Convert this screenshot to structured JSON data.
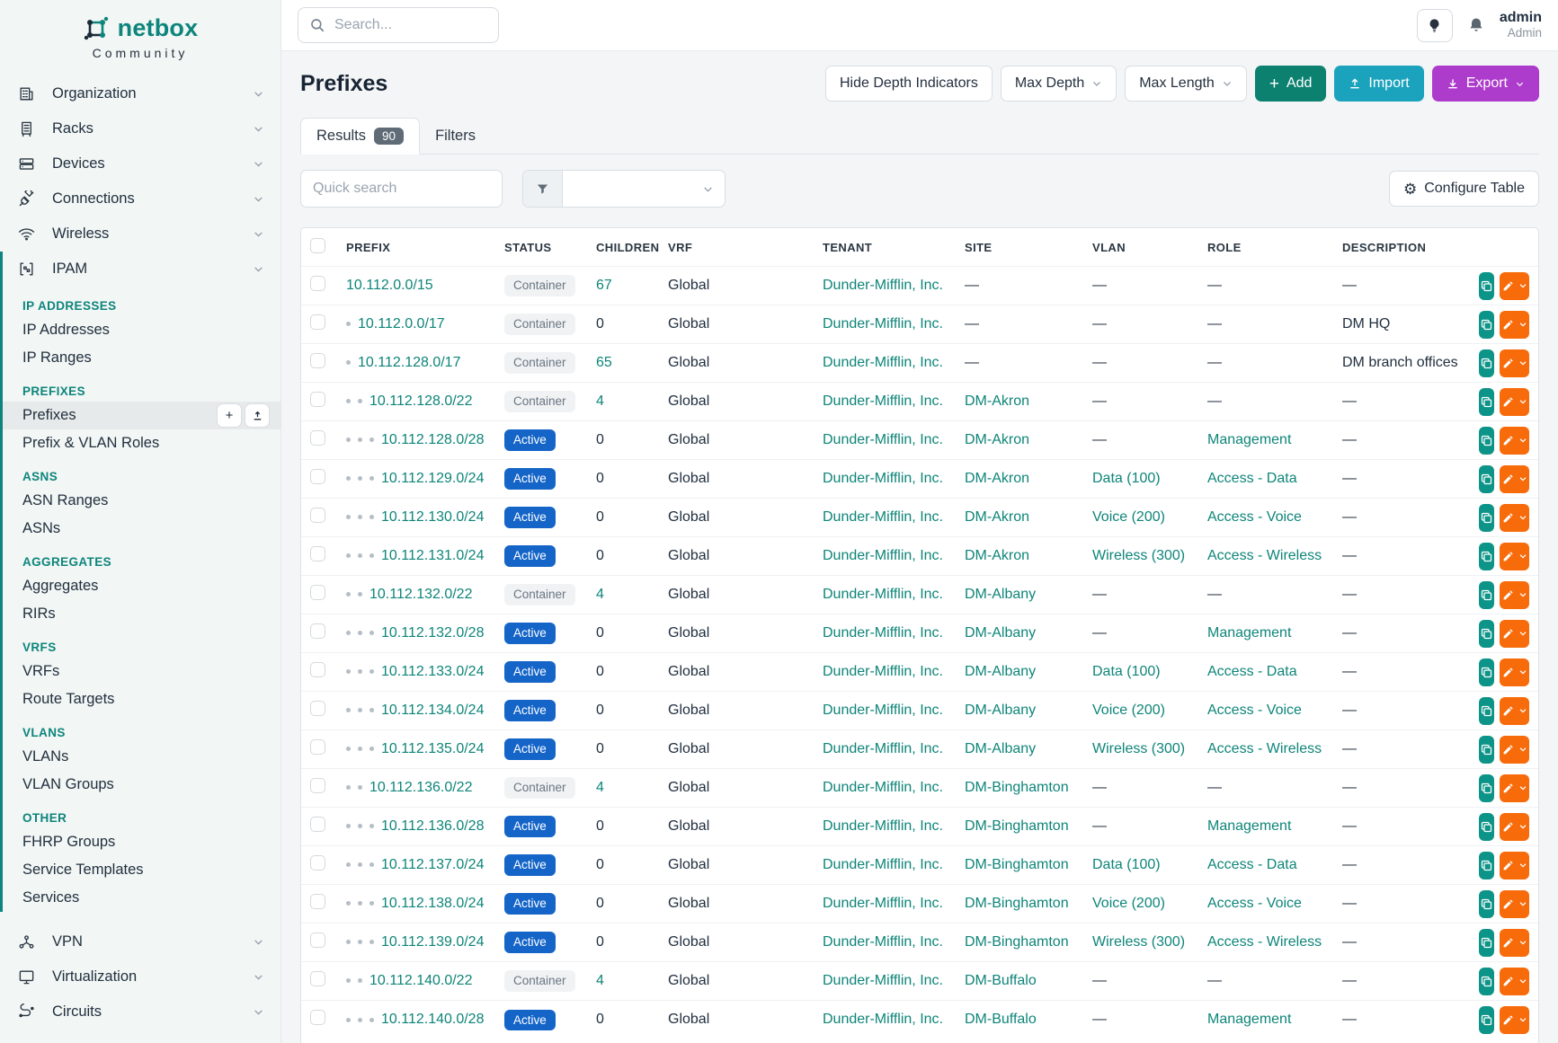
{
  "brand": {
    "name": "netbox",
    "subtitle": "Community"
  },
  "topbar": {
    "search_placeholder": "Search...",
    "user_name": "admin",
    "user_role": "Admin"
  },
  "sidebar": {
    "top_items": [
      {
        "label": "Organization",
        "icon": "building-icon"
      },
      {
        "label": "Racks",
        "icon": "rack-icon"
      },
      {
        "label": "Devices",
        "icon": "devices-icon"
      },
      {
        "label": "Connections",
        "icon": "plug-icon"
      },
      {
        "label": "Wireless",
        "icon": "wifi-icon"
      }
    ],
    "ipam": {
      "label": "IPAM",
      "icon": "ipam-icon",
      "sections": [
        {
          "title": "IP ADDRESSES",
          "items": [
            {
              "label": "IP Addresses"
            },
            {
              "label": "IP Ranges"
            }
          ]
        },
        {
          "title": "PREFIXES",
          "items": [
            {
              "label": "Prefixes",
              "active": true
            },
            {
              "label": "Prefix & VLAN Roles"
            }
          ]
        },
        {
          "title": "ASNS",
          "items": [
            {
              "label": "ASN Ranges"
            },
            {
              "label": "ASNs"
            }
          ]
        },
        {
          "title": "AGGREGATES",
          "items": [
            {
              "label": "Aggregates"
            },
            {
              "label": "RIRs"
            }
          ]
        },
        {
          "title": "VRFS",
          "items": [
            {
              "label": "VRFs"
            },
            {
              "label": "Route Targets"
            }
          ]
        },
        {
          "title": "VLANS",
          "items": [
            {
              "label": "VLANs"
            },
            {
              "label": "VLAN Groups"
            }
          ]
        },
        {
          "title": "OTHER",
          "items": [
            {
              "label": "FHRP Groups"
            },
            {
              "label": "Service Templates"
            },
            {
              "label": "Services"
            }
          ]
        }
      ]
    },
    "bottom_items": [
      {
        "label": "VPN",
        "icon": "vpn-icon"
      },
      {
        "label": "Virtualization",
        "icon": "monitor-icon"
      },
      {
        "label": "Circuits",
        "icon": "circuits-icon"
      }
    ]
  },
  "page": {
    "title": "Prefixes",
    "hide_depth_label": "Hide Depth Indicators",
    "max_depth_label": "Max Depth",
    "max_length_label": "Max Length",
    "add_label": "Add",
    "import_label": "Import",
    "export_label": "Export"
  },
  "tabs": {
    "results_label": "Results",
    "results_count": "90",
    "filters_label": "Filters"
  },
  "toolbar": {
    "quick_search_placeholder": "Quick search",
    "configure_label": "Configure Table"
  },
  "table": {
    "columns": [
      "PREFIX",
      "STATUS",
      "CHILDREN",
      "VRF",
      "TENANT",
      "SITE",
      "VLAN",
      "ROLE",
      "DESCRIPTION"
    ],
    "rows": [
      {
        "depth": 0,
        "prefix": "10.112.0.0/15",
        "status": "Container",
        "children": "67",
        "vrf": "Global",
        "tenant": "Dunder-Mifflin, Inc.",
        "site": "—",
        "vlan": "—",
        "role": "—",
        "description": "—"
      },
      {
        "depth": 1,
        "prefix": "10.112.0.0/17",
        "status": "Container",
        "children": "0",
        "vrf": "Global",
        "tenant": "Dunder-Mifflin, Inc.",
        "site": "—",
        "vlan": "—",
        "role": "—",
        "description": "DM HQ"
      },
      {
        "depth": 1,
        "prefix": "10.112.128.0/17",
        "status": "Container",
        "children": "65",
        "vrf": "Global",
        "tenant": "Dunder-Mifflin, Inc.",
        "site": "—",
        "vlan": "—",
        "role": "—",
        "description": "DM branch offices"
      },
      {
        "depth": 2,
        "prefix": "10.112.128.0/22",
        "status": "Container",
        "children": "4",
        "vrf": "Global",
        "tenant": "Dunder-Mifflin, Inc.",
        "site": "DM-Akron",
        "vlan": "—",
        "role": "—",
        "description": "—"
      },
      {
        "depth": 3,
        "prefix": "10.112.128.0/28",
        "status": "Active",
        "children": "0",
        "vrf": "Global",
        "tenant": "Dunder-Mifflin, Inc.",
        "site": "DM-Akron",
        "vlan": "—",
        "role": "Management",
        "description": "—"
      },
      {
        "depth": 3,
        "prefix": "10.112.129.0/24",
        "status": "Active",
        "children": "0",
        "vrf": "Global",
        "tenant": "Dunder-Mifflin, Inc.",
        "site": "DM-Akron",
        "vlan": "Data (100)",
        "role": "Access - Data",
        "description": "—"
      },
      {
        "depth": 3,
        "prefix": "10.112.130.0/24",
        "status": "Active",
        "children": "0",
        "vrf": "Global",
        "tenant": "Dunder-Mifflin, Inc.",
        "site": "DM-Akron",
        "vlan": "Voice (200)",
        "role": "Access - Voice",
        "description": "—"
      },
      {
        "depth": 3,
        "prefix": "10.112.131.0/24",
        "status": "Active",
        "children": "0",
        "vrf": "Global",
        "tenant": "Dunder-Mifflin, Inc.",
        "site": "DM-Akron",
        "vlan": "Wireless (300)",
        "role": "Access - Wireless",
        "description": "—"
      },
      {
        "depth": 2,
        "prefix": "10.112.132.0/22",
        "status": "Container",
        "children": "4",
        "vrf": "Global",
        "tenant": "Dunder-Mifflin, Inc.",
        "site": "DM-Albany",
        "vlan": "—",
        "role": "—",
        "description": "—"
      },
      {
        "depth": 3,
        "prefix": "10.112.132.0/28",
        "status": "Active",
        "children": "0",
        "vrf": "Global",
        "tenant": "Dunder-Mifflin, Inc.",
        "site": "DM-Albany",
        "vlan": "—",
        "role": "Management",
        "description": "—"
      },
      {
        "depth": 3,
        "prefix": "10.112.133.0/24",
        "status": "Active",
        "children": "0",
        "vrf": "Global",
        "tenant": "Dunder-Mifflin, Inc.",
        "site": "DM-Albany",
        "vlan": "Data (100)",
        "role": "Access - Data",
        "description": "—"
      },
      {
        "depth": 3,
        "prefix": "10.112.134.0/24",
        "status": "Active",
        "children": "0",
        "vrf": "Global",
        "tenant": "Dunder-Mifflin, Inc.",
        "site": "DM-Albany",
        "vlan": "Voice (200)",
        "role": "Access - Voice",
        "description": "—"
      },
      {
        "depth": 3,
        "prefix": "10.112.135.0/24",
        "status": "Active",
        "children": "0",
        "vrf": "Global",
        "tenant": "Dunder-Mifflin, Inc.",
        "site": "DM-Albany",
        "vlan": "Wireless (300)",
        "role": "Access - Wireless",
        "description": "—"
      },
      {
        "depth": 2,
        "prefix": "10.112.136.0/22",
        "status": "Container",
        "children": "4",
        "vrf": "Global",
        "tenant": "Dunder-Mifflin, Inc.",
        "site": "DM-Binghamton",
        "vlan": "—",
        "role": "—",
        "description": "—"
      },
      {
        "depth": 3,
        "prefix": "10.112.136.0/28",
        "status": "Active",
        "children": "0",
        "vrf": "Global",
        "tenant": "Dunder-Mifflin, Inc.",
        "site": "DM-Binghamton",
        "vlan": "—",
        "role": "Management",
        "description": "—"
      },
      {
        "depth": 3,
        "prefix": "10.112.137.0/24",
        "status": "Active",
        "children": "0",
        "vrf": "Global",
        "tenant": "Dunder-Mifflin, Inc.",
        "site": "DM-Binghamton",
        "vlan": "Data (100)",
        "role": "Access - Data",
        "description": "—"
      },
      {
        "depth": 3,
        "prefix": "10.112.138.0/24",
        "status": "Active",
        "children": "0",
        "vrf": "Global",
        "tenant": "Dunder-Mifflin, Inc.",
        "site": "DM-Binghamton",
        "vlan": "Voice (200)",
        "role": "Access - Voice",
        "description": "—"
      },
      {
        "depth": 3,
        "prefix": "10.112.139.0/24",
        "status": "Active",
        "children": "0",
        "vrf": "Global",
        "tenant": "Dunder-Mifflin, Inc.",
        "site": "DM-Binghamton",
        "vlan": "Wireless (300)",
        "role": "Access - Wireless",
        "description": "—"
      },
      {
        "depth": 2,
        "prefix": "10.112.140.0/22",
        "status": "Container",
        "children": "4",
        "vrf": "Global",
        "tenant": "Dunder-Mifflin, Inc.",
        "site": "DM-Buffalo",
        "vlan": "—",
        "role": "—",
        "description": "—"
      },
      {
        "depth": 3,
        "prefix": "10.112.140.0/28",
        "status": "Active",
        "children": "0",
        "vrf": "Global",
        "tenant": "Dunder-Mifflin, Inc.",
        "site": "DM-Buffalo",
        "vlan": "—",
        "role": "Management",
        "description": "—"
      }
    ]
  },
  "colors": {
    "brand": "#0d857c",
    "link": "#0e8579",
    "badge-active": "#1565c8",
    "badge-container-bg": "#f0f2f4",
    "badge-container-text": "#6a7683",
    "btn-add": "#0c8170",
    "btn-import": "#1ba3bd",
    "btn-export": "#ad3bcb",
    "btn-edit": "#f76b0b",
    "btn-copy": "#0d9488",
    "results-badge": "#5f6b76",
    "sidebar-bg": "#f2f6f5",
    "content-bg": "#f3f5f6"
  }
}
